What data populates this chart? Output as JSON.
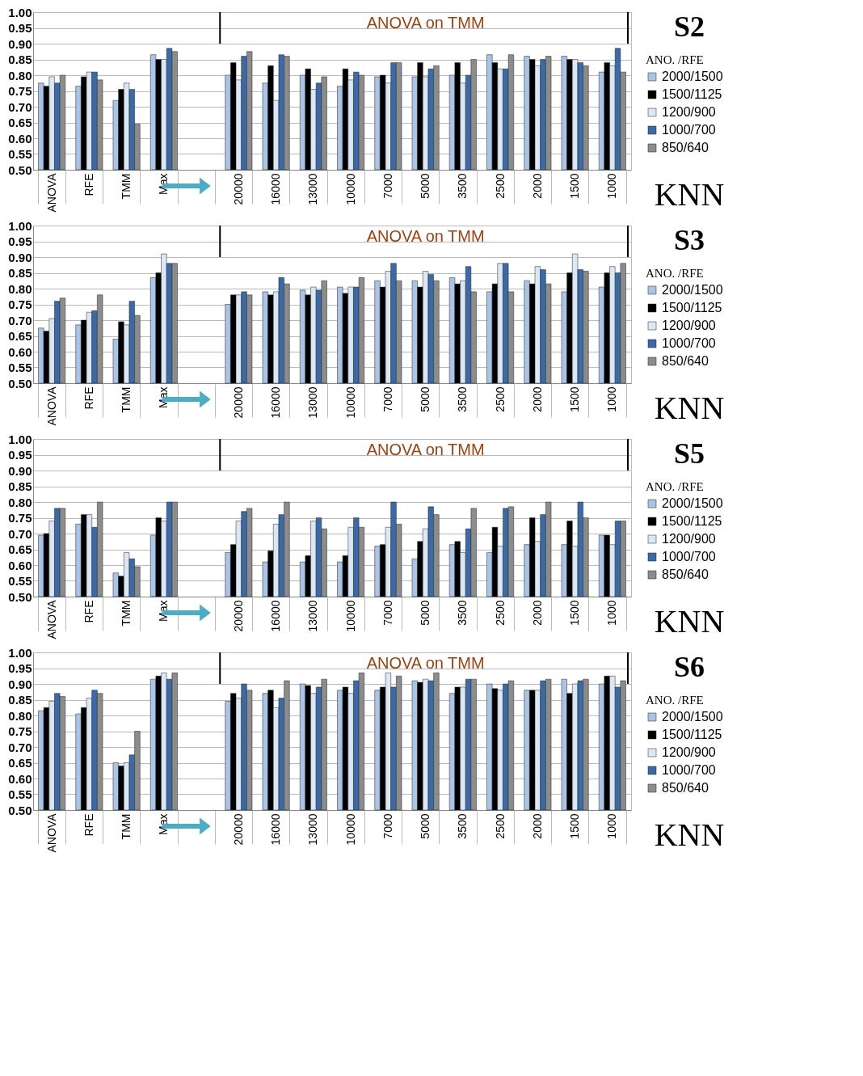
{
  "chart_data": [
    {
      "type": "bar",
      "legend_title": "ANO. /RFE",
      "legend": "right",
      "grid": "y",
      "ylim": [
        0.5,
        1.0
      ],
      "yticks": [
        {
          "value": 0.5,
          "label": "0.50"
        },
        {
          "value": 0.55,
          "label": "0.55"
        },
        {
          "value": 0.6,
          "label": "0.60"
        },
        {
          "value": 0.65,
          "label": "0.65"
        },
        {
          "value": 0.7,
          "label": "0.70"
        },
        {
          "value": 0.75,
          "label": "0.75"
        },
        {
          "value": 0.8,
          "label": "0.80"
        },
        {
          "value": 0.85,
          "label": "0.85"
        },
        {
          "value": 0.9,
          "label": "0.90"
        },
        {
          "value": 0.95,
          "label": "0.95"
        },
        {
          "value": 1.0,
          "label": "1.00"
        }
      ],
      "annotations": [
        "ANOVA on TMM",
        "S2",
        "KNN"
      ],
      "categories": [
        "ANOVA",
        "RFE",
        "TMM",
        "Max",
        null,
        "20000",
        "16000",
        "13000",
        "10000",
        "7000",
        "5000",
        "3500",
        "2500",
        "2000",
        "1500",
        "1000"
      ],
      "series": [
        {
          "name": "2000/1500",
          "color": "#a9c4e6",
          "values": [
            0.775,
            0.765,
            0.72,
            0.865,
            null,
            0.8,
            0.775,
            0.8,
            0.765,
            0.795,
            0.795,
            0.8,
            0.865,
            0.86,
            0.86,
            0.81
          ]
        },
        {
          "name": "1500/1125",
          "color": "#000000",
          "values": [
            0.765,
            0.795,
            0.755,
            0.85,
            null,
            0.84,
            0.83,
            0.82,
            0.82,
            0.8,
            0.84,
            0.84,
            0.84,
            0.85,
            0.85,
            0.84
          ]
        },
        {
          "name": "1200/900",
          "color": "#dce7f5",
          "values": [
            0.795,
            0.81,
            0.775,
            0.85,
            null,
            0.785,
            0.72,
            0.755,
            0.785,
            0.775,
            0.795,
            0.775,
            0.82,
            0.83,
            0.85,
            0.83
          ]
        },
        {
          "name": "1000/700",
          "color": "#3a6aa8",
          "values": [
            0.775,
            0.81,
            0.755,
            0.885,
            null,
            0.86,
            0.865,
            0.775,
            0.81,
            0.84,
            0.82,
            0.8,
            0.82,
            0.85,
            0.84,
            0.885
          ]
        },
        {
          "name": "850/640",
          "color": "#8c8c8c",
          "values": [
            0.8,
            0.785,
            0.645,
            0.875,
            null,
            0.875,
            0.86,
            0.795,
            0.8,
            0.84,
            0.83,
            0.85,
            0.865,
            0.86,
            0.83,
            0.81
          ]
        }
      ]
    },
    {
      "type": "bar",
      "legend_title": "ANO. /RFE",
      "legend": "right",
      "grid": "y",
      "ylim": [
        0.5,
        1.0
      ],
      "yticks": [
        {
          "value": 0.5,
          "label": "0.50"
        },
        {
          "value": 0.55,
          "label": "0.55"
        },
        {
          "value": 0.6,
          "label": "0.60"
        },
        {
          "value": 0.65,
          "label": "0.65"
        },
        {
          "value": 0.7,
          "label": "0.70"
        },
        {
          "value": 0.75,
          "label": "0.75"
        },
        {
          "value": 0.8,
          "label": "0.80"
        },
        {
          "value": 0.85,
          "label": "0.85"
        },
        {
          "value": 0.9,
          "label": "0.90"
        },
        {
          "value": 0.95,
          "label": "0.95"
        },
        {
          "value": 1.0,
          "label": "1.00"
        }
      ],
      "annotations": [
        "ANOVA on TMM",
        "S3",
        "KNN"
      ],
      "categories": [
        "ANOVA",
        "RFE",
        "TMM",
        "Max",
        null,
        "20000",
        "16000",
        "13000",
        "10000",
        "7000",
        "5000",
        "3500",
        "2500",
        "2000",
        "1500",
        "1000"
      ],
      "series": [
        {
          "name": "2000/1500",
          "color": "#a9c4e6",
          "values": [
            0.675,
            0.685,
            0.64,
            0.835,
            null,
            0.75,
            0.79,
            0.795,
            0.805,
            0.825,
            0.825,
            0.835,
            0.79,
            0.825,
            0.79,
            0.805
          ]
        },
        {
          "name": "1500/1125",
          "color": "#000000",
          "values": [
            0.665,
            0.7,
            0.695,
            0.85,
            null,
            0.78,
            0.78,
            0.78,
            0.785,
            0.805,
            0.805,
            0.815,
            0.815,
            0.815,
            0.85,
            0.85
          ]
        },
        {
          "name": "1200/900",
          "color": "#dce7f5",
          "values": [
            0.705,
            0.725,
            0.685,
            0.91,
            null,
            0.78,
            0.79,
            0.805,
            0.805,
            0.855,
            0.855,
            0.825,
            0.88,
            0.87,
            0.91,
            0.87
          ]
        },
        {
          "name": "1000/700",
          "color": "#3a6aa8",
          "values": [
            0.76,
            0.73,
            0.76,
            0.88,
            null,
            0.79,
            0.835,
            0.795,
            0.805,
            0.88,
            0.845,
            0.87,
            0.88,
            0.86,
            0.86,
            0.85
          ]
        },
        {
          "name": "850/640",
          "color": "#8c8c8c",
          "values": [
            0.77,
            0.78,
            0.715,
            0.88,
            null,
            0.78,
            0.815,
            0.825,
            0.835,
            0.825,
            0.825,
            0.79,
            0.79,
            0.815,
            0.855,
            0.88
          ]
        }
      ]
    },
    {
      "type": "bar",
      "legend_title": "ANO. /RFE",
      "legend": "right",
      "grid": "y",
      "ylim": [
        0.5,
        1.0
      ],
      "yticks": [
        {
          "value": 0.5,
          "label": "0.50"
        },
        {
          "value": 0.55,
          "label": "0.55"
        },
        {
          "value": 0.6,
          "label": "0.60"
        },
        {
          "value": 0.65,
          "label": "0.65"
        },
        {
          "value": 0.7,
          "label": "0.70"
        },
        {
          "value": 0.75,
          "label": "0.75"
        },
        {
          "value": 0.8,
          "label": "0.80"
        },
        {
          "value": 0.85,
          "label": "0.85"
        },
        {
          "value": 0.9,
          "label": "0.90"
        },
        {
          "value": 0.95,
          "label": "0.95"
        },
        {
          "value": 1.0,
          "label": "1.00"
        }
      ],
      "annotations": [
        "ANOVA on TMM",
        "S5",
        "KNN"
      ],
      "categories": [
        "ANOVA",
        "RFE",
        "TMM",
        "Max",
        null,
        "20000",
        "16000",
        "13000",
        "10000",
        "7000",
        "5000",
        "3500",
        "2500",
        "2000",
        "1500",
        "1000"
      ],
      "series": [
        {
          "name": "2000/1500",
          "color": "#a9c4e6",
          "values": [
            0.695,
            0.73,
            0.575,
            0.695,
            null,
            0.64,
            0.61,
            0.61,
            0.61,
            0.66,
            0.62,
            0.665,
            0.64,
            0.665,
            0.665,
            0.695
          ]
        },
        {
          "name": "1500/1125",
          "color": "#000000",
          "values": [
            0.7,
            0.76,
            0.565,
            0.75,
            null,
            0.665,
            0.645,
            0.63,
            0.63,
            0.665,
            0.675,
            0.675,
            0.72,
            0.75,
            0.74,
            0.695
          ]
        },
        {
          "name": "1200/900",
          "color": "#dce7f5",
          "values": [
            0.74,
            0.76,
            0.64,
            0.74,
            null,
            0.74,
            0.73,
            0.74,
            0.72,
            0.72,
            0.715,
            0.64,
            0.66,
            0.675,
            0.66,
            0.665
          ]
        },
        {
          "name": "1000/700",
          "color": "#3a6aa8",
          "values": [
            0.78,
            0.72,
            0.62,
            0.8,
            null,
            0.77,
            0.76,
            0.75,
            0.75,
            0.8,
            0.785,
            0.715,
            0.78,
            0.76,
            0.8,
            0.74
          ]
        },
        {
          "name": "850/640",
          "color": "#8c8c8c",
          "values": [
            0.78,
            0.8,
            0.595,
            0.8,
            null,
            0.78,
            0.8,
            0.715,
            0.72,
            0.73,
            0.76,
            0.78,
            0.785,
            0.8,
            0.75,
            0.74
          ]
        }
      ]
    },
    {
      "type": "bar",
      "legend_title": "ANO. /RFE",
      "legend": "right",
      "grid": "y",
      "ylim": [
        0.5,
        1.0
      ],
      "yticks": [
        {
          "value": 0.5,
          "label": "0.50"
        },
        {
          "value": 0.55,
          "label": "0.55"
        },
        {
          "value": 0.6,
          "label": "0.60"
        },
        {
          "value": 0.65,
          "label": "0.65"
        },
        {
          "value": 0.7,
          "label": "0.70"
        },
        {
          "value": 0.75,
          "label": "0.75"
        },
        {
          "value": 0.8,
          "label": "0.80"
        },
        {
          "value": 0.85,
          "label": "0.85"
        },
        {
          "value": 0.9,
          "label": "0.90"
        },
        {
          "value": 0.95,
          "label": "0.95"
        },
        {
          "value": 1.0,
          "label": "1.00"
        }
      ],
      "annotations": [
        "ANOVA on TMM",
        "S6",
        "KNN"
      ],
      "categories": [
        "ANOVA",
        "RFE",
        "TMM",
        "Max",
        null,
        "20000",
        "16000",
        "13000",
        "10000",
        "7000",
        "5000",
        "3500",
        "2500",
        "2000",
        "1500",
        "1000"
      ],
      "series": [
        {
          "name": "2000/1500",
          "color": "#a9c4e6",
          "values": [
            0.815,
            0.805,
            0.65,
            0.915,
            null,
            0.845,
            0.87,
            0.9,
            0.88,
            0.88,
            0.91,
            0.87,
            0.9,
            0.88,
            0.915,
            0.9
          ]
        },
        {
          "name": "1500/1125",
          "color": "#000000",
          "values": [
            0.825,
            0.825,
            0.64,
            0.925,
            null,
            0.87,
            0.88,
            0.895,
            0.89,
            0.89,
            0.905,
            0.89,
            0.885,
            0.88,
            0.87,
            0.925
          ]
        },
        {
          "name": "1200/900",
          "color": "#dce7f5",
          "values": [
            0.845,
            0.855,
            0.65,
            0.935,
            null,
            0.855,
            0.825,
            0.87,
            0.87,
            0.935,
            0.915,
            0.89,
            0.88,
            0.88,
            0.9,
            0.925
          ]
        },
        {
          "name": "1000/700",
          "color": "#3a6aa8",
          "values": [
            0.87,
            0.88,
            0.675,
            0.915,
            null,
            0.9,
            0.855,
            0.89,
            0.91,
            0.89,
            0.91,
            0.915,
            0.9,
            0.91,
            0.91,
            0.89
          ]
        },
        {
          "name": "850/640",
          "color": "#8c8c8c",
          "values": [
            0.86,
            0.87,
            0.75,
            0.935,
            null,
            0.88,
            0.91,
            0.915,
            0.935,
            0.925,
            0.935,
            0.915,
            0.91,
            0.915,
            0.915,
            0.91
          ]
        }
      ]
    }
  ]
}
